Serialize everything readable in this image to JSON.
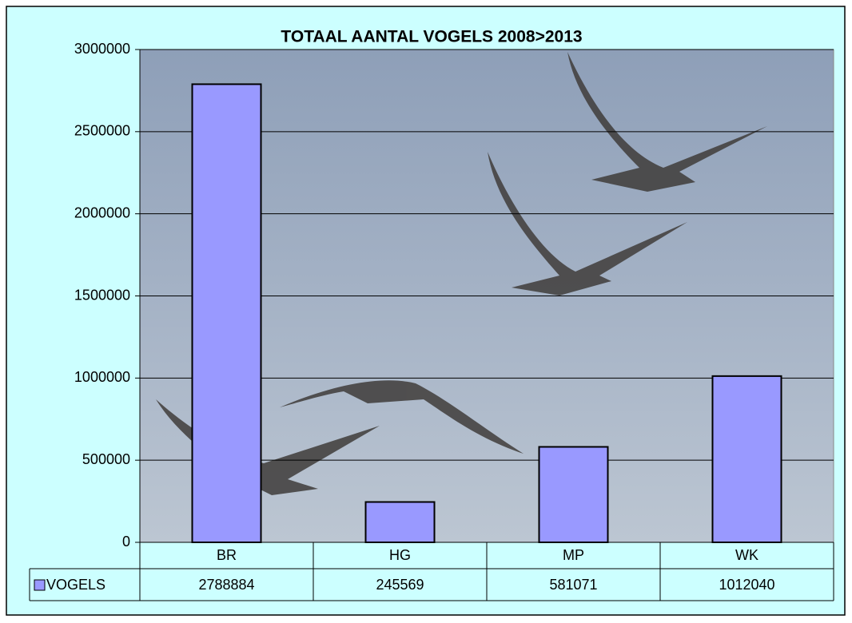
{
  "chart_data": {
    "type": "bar",
    "title": "TOTAAL AANTAL VOGELS 2008>2013",
    "categories": [
      "BR",
      "HG",
      "MP",
      "WK"
    ],
    "series": [
      {
        "name": "VOGELS",
        "color": "#9999ff",
        "values": [
          2788884,
          245569,
          581071,
          1012040
        ]
      }
    ],
    "ylim": [
      0,
      3000000
    ],
    "yticks": [
      0,
      500000,
      1000000,
      1500000,
      2000000,
      2500000,
      3000000
    ],
    "grid": true,
    "data_table": true
  }
}
